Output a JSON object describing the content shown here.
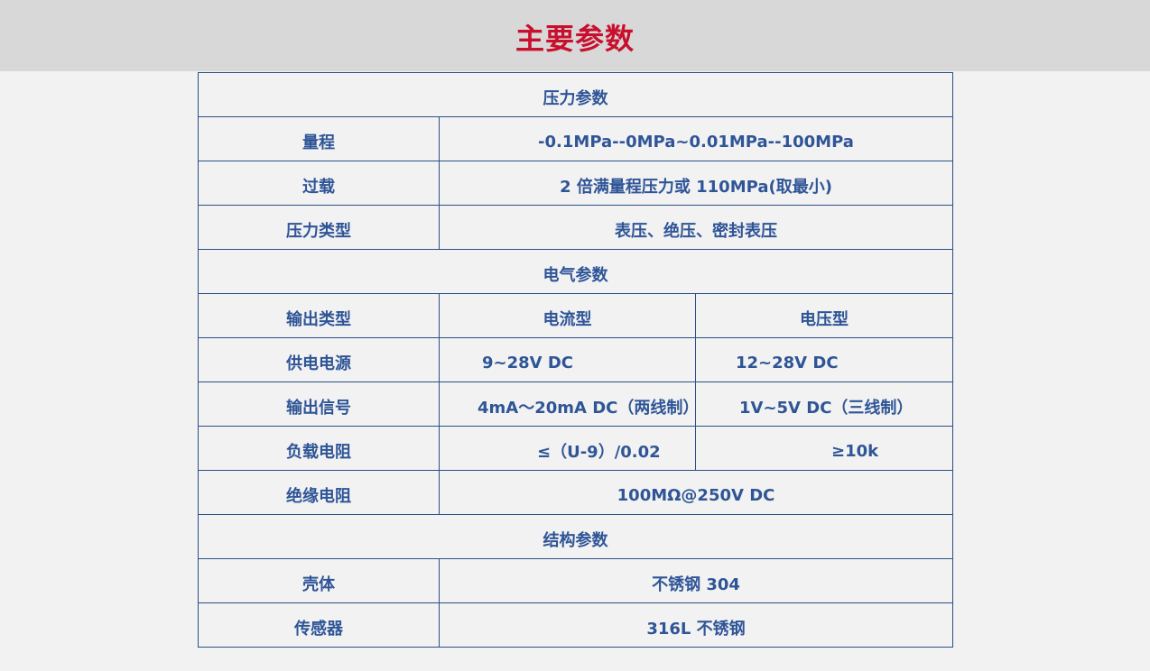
{
  "title": "主要参数",
  "sections": {
    "pressure": "压力参数",
    "electrical": "电气参数",
    "structure": "结构参数"
  },
  "rows": {
    "range": {
      "label": "量程",
      "value": "-0.1MPa--0MPa~0.01MPa--100MPa"
    },
    "overload": {
      "label": "过载",
      "value": "2 倍满量程压力或 110MPa(取最小)"
    },
    "pressure_type": {
      "label": "压力类型",
      "value": "表压、绝压、密封表压"
    },
    "output_type": {
      "label": "输出类型",
      "current": "电流型",
      "voltage": "电压型"
    },
    "supply": {
      "label": "供电电源",
      "current": "9~28V DC",
      "voltage": "12~28V DC"
    },
    "signal": {
      "label": "输出信号",
      "current": "4mA～20mA DC（两线制）",
      "voltage": "1V~5V DC（三线制）"
    },
    "load": {
      "label": "负载电阻",
      "current": "≤（U-9）/0.02",
      "voltage": "≥10k"
    },
    "insulation": {
      "label": "绝缘电阻",
      "value": "100MΩ@250V DC"
    },
    "housing": {
      "label": "壳体",
      "value": "不锈钢 304"
    },
    "sensor": {
      "label": "传感器",
      "value": "316L 不锈钢"
    }
  }
}
